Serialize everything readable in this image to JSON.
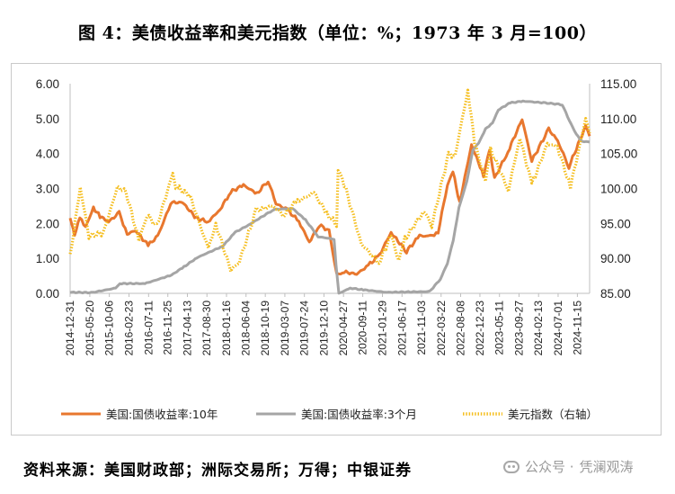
{
  "title": "图 4：美债收益率和美元指数（单位：%；1973 年 3 月=100）",
  "source": "资料来源：美国财政部；洲际交易所；万得；中银证券",
  "watermark": {
    "sep": "公众号 ·",
    "name": "凭澜观涛",
    "icon": "wechat-icon"
  },
  "chart_data": {
    "type": "line",
    "y_left": {
      "ticks": [
        "0.00",
        "1.00",
        "2.00",
        "3.00",
        "4.00",
        "5.00",
        "6.00"
      ],
      "range": [
        0,
        6
      ]
    },
    "y_right": {
      "ticks": [
        "85.00",
        "90.00",
        "95.00",
        "100.00",
        "105.00",
        "110.00",
        "115.00"
      ],
      "range": [
        85,
        115
      ]
    },
    "x_range": [
      "2014-12-31",
      "2025-02-10"
    ],
    "x_ticks": [
      "2014-12-31",
      "2015-05-20",
      "2015-10-06",
      "2016-02-23",
      "2016-07-11",
      "2016-11-25",
      "2017-04-13",
      "2017-08-30",
      "2018-01-16",
      "2018-06-04",
      "2018-10-19",
      "2019-03-07",
      "2019-07-24",
      "2019-12-10",
      "2020-04-27",
      "2020-09-11",
      "2021-01-29",
      "2021-06-17",
      "2021-11-03",
      "2022-03-22",
      "2022-08-08",
      "2022-12-23",
      "2023-05-11",
      "2023-09-27",
      "2024-02-13",
      "2024-07-01",
      "2024-11-15"
    ],
    "series": [
      {
        "name": "美国:国债收益率:10年",
        "axis": "left",
        "color": "#e8772e",
        "points": [
          [
            "2014-12-31",
            2.17
          ],
          [
            "2015-02-01",
            1.68
          ],
          [
            "2015-03-10",
            2.15
          ],
          [
            "2015-04-20",
            1.9
          ],
          [
            "2015-06-15",
            2.45
          ],
          [
            "2015-08-01",
            2.2
          ],
          [
            "2015-10-01",
            2.05
          ],
          [
            "2015-12-15",
            2.3
          ],
          [
            "2016-02-10",
            1.7
          ],
          [
            "2016-04-10",
            1.8
          ],
          [
            "2016-07-08",
            1.37
          ],
          [
            "2016-09-15",
            1.65
          ],
          [
            "2016-11-15",
            2.25
          ],
          [
            "2016-12-15",
            2.6
          ],
          [
            "2017-03-10",
            2.6
          ],
          [
            "2017-06-15",
            2.15
          ],
          [
            "2017-09-08",
            2.05
          ],
          [
            "2017-12-01",
            2.4
          ],
          [
            "2018-02-15",
            2.9
          ],
          [
            "2018-05-17",
            3.1
          ],
          [
            "2018-08-20",
            2.85
          ],
          [
            "2018-11-08",
            3.23
          ],
          [
            "2019-01-03",
            2.56
          ],
          [
            "2019-03-25",
            2.4
          ],
          [
            "2019-06-15",
            2.05
          ],
          [
            "2019-08-28",
            1.47
          ],
          [
            "2019-11-07",
            1.95
          ],
          [
            "2020-01-15",
            1.8
          ],
          [
            "2020-03-09",
            0.54
          ],
          [
            "2020-04-20",
            0.62
          ],
          [
            "2020-07-30",
            0.55
          ],
          [
            "2020-10-20",
            0.8
          ],
          [
            "2021-01-08",
            1.1
          ],
          [
            "2021-03-31",
            1.74
          ],
          [
            "2021-07-19",
            1.2
          ],
          [
            "2021-10-20",
            1.65
          ],
          [
            "2022-01-03",
            1.63
          ],
          [
            "2022-03-01",
            1.75
          ],
          [
            "2022-05-06",
            3.1
          ],
          [
            "2022-06-14",
            3.48
          ],
          [
            "2022-08-01",
            2.6
          ],
          [
            "2022-10-24",
            4.25
          ],
          [
            "2023-01-18",
            3.38
          ],
          [
            "2023-03-02",
            4.08
          ],
          [
            "2023-04-06",
            3.29
          ],
          [
            "2023-07-10",
            4.05
          ],
          [
            "2023-10-19",
            4.98
          ],
          [
            "2023-12-27",
            3.79
          ],
          [
            "2024-04-25",
            4.7
          ],
          [
            "2024-06-28",
            4.36
          ],
          [
            "2024-09-16",
            3.62
          ],
          [
            "2025-01-13",
            4.79
          ],
          [
            "2025-02-10",
            4.5
          ]
        ]
      },
      {
        "name": "美国:国债收益率:3个月",
        "axis": "left",
        "color": "#a5a5a5",
        "points": [
          [
            "2014-12-31",
            0.03
          ],
          [
            "2015-06-01",
            0.02
          ],
          [
            "2015-11-20",
            0.15
          ],
          [
            "2015-12-20",
            0.28
          ],
          [
            "2016-06-15",
            0.28
          ],
          [
            "2016-12-20",
            0.52
          ],
          [
            "2017-03-20",
            0.76
          ],
          [
            "2017-06-20",
            1.02
          ],
          [
            "2017-12-20",
            1.35
          ],
          [
            "2018-03-20",
            1.75
          ],
          [
            "2018-06-20",
            1.95
          ],
          [
            "2018-09-28",
            2.2
          ],
          [
            "2018-12-20",
            2.4
          ],
          [
            "2019-05-01",
            2.43
          ],
          [
            "2019-08-01",
            2.1
          ],
          [
            "2019-10-30",
            1.62
          ],
          [
            "2020-02-20",
            1.55
          ],
          [
            "2020-03-05",
            0.8
          ],
          [
            "2020-03-25",
            0.0
          ],
          [
            "2020-06-15",
            0.15
          ],
          [
            "2020-09-15",
            0.1
          ],
          [
            "2021-03-01",
            0.03
          ],
          [
            "2021-12-30",
            0.05
          ],
          [
            "2022-03-16",
            0.4
          ],
          [
            "2022-05-05",
            0.85
          ],
          [
            "2022-06-16",
            1.5
          ],
          [
            "2022-07-27",
            2.45
          ],
          [
            "2022-09-21",
            3.2
          ],
          [
            "2022-11-02",
            4.1
          ],
          [
            "2022-12-14",
            4.3
          ],
          [
            "2023-02-01",
            4.7
          ],
          [
            "2023-03-22",
            4.88
          ],
          [
            "2023-05-03",
            5.25
          ],
          [
            "2023-07-26",
            5.45
          ],
          [
            "2023-10-25",
            5.5
          ],
          [
            "2024-04-01",
            5.45
          ],
          [
            "2024-07-31",
            5.4
          ],
          [
            "2024-09-18",
            4.95
          ],
          [
            "2024-11-07",
            4.55
          ],
          [
            "2024-12-18",
            4.35
          ],
          [
            "2025-02-10",
            4.33
          ]
        ]
      },
      {
        "name": "美元指数（右轴）",
        "axis": "right",
        "color": "#f5be1e",
        "points": [
          [
            "2014-12-31",
            90.3
          ],
          [
            "2015-03-13",
            100.2
          ],
          [
            "2015-05-14",
            93.2
          ],
          [
            "2015-08-24",
            93.6
          ],
          [
            "2015-12-02",
            100.2
          ],
          [
            "2016-02-01",
            99.5
          ],
          [
            "2016-05-03",
            92.6
          ],
          [
            "2016-07-01",
            96.2
          ],
          [
            "2016-09-08",
            94.6
          ],
          [
            "2016-12-30",
            102.2
          ],
          [
            "2017-01-20",
            100.3
          ],
          [
            "2017-04-30",
            99.0
          ],
          [
            "2017-09-08",
            91.4
          ],
          [
            "2017-11-01",
            94.9
          ],
          [
            "2018-02-15",
            88.3
          ],
          [
            "2018-04-17",
            89.5
          ],
          [
            "2018-08-15",
            96.9
          ],
          [
            "2018-12-14",
            97.5
          ],
          [
            "2019-02-28",
            96.2
          ],
          [
            "2019-05-23",
            98.0
          ],
          [
            "2019-09-30",
            99.4
          ],
          [
            "2020-01-01",
            96.4
          ],
          [
            "2020-03-09",
            94.8
          ],
          [
            "2020-03-20",
            102.8
          ],
          [
            "2020-05-15",
            99.8
          ],
          [
            "2020-08-31",
            92.1
          ],
          [
            "2021-01-06",
            89.4
          ],
          [
            "2021-03-31",
            93.3
          ],
          [
            "2021-05-25",
            89.7
          ],
          [
            "2021-07-07",
            92.8
          ],
          [
            "2021-11-24",
            96.8
          ],
          [
            "2022-01-14",
            94.6
          ],
          [
            "2022-05-13",
            104.9
          ],
          [
            "2022-06-30",
            104.7
          ],
          [
            "2022-09-28",
            114.1
          ],
          [
            "2022-11-15",
            106.5
          ],
          [
            "2023-02-01",
            101.0
          ],
          [
            "2023-03-08",
            105.6
          ],
          [
            "2023-07-14",
            99.8
          ],
          [
            "2023-10-03",
            107.3
          ],
          [
            "2023-12-27",
            100.6
          ],
          [
            "2024-04-16",
            106.4
          ],
          [
            "2024-06-26",
            106.0
          ],
          [
            "2024-09-27",
            100.2
          ],
          [
            "2025-01-13",
            110.0
          ],
          [
            "2025-02-10",
            107.9
          ]
        ]
      }
    ]
  }
}
